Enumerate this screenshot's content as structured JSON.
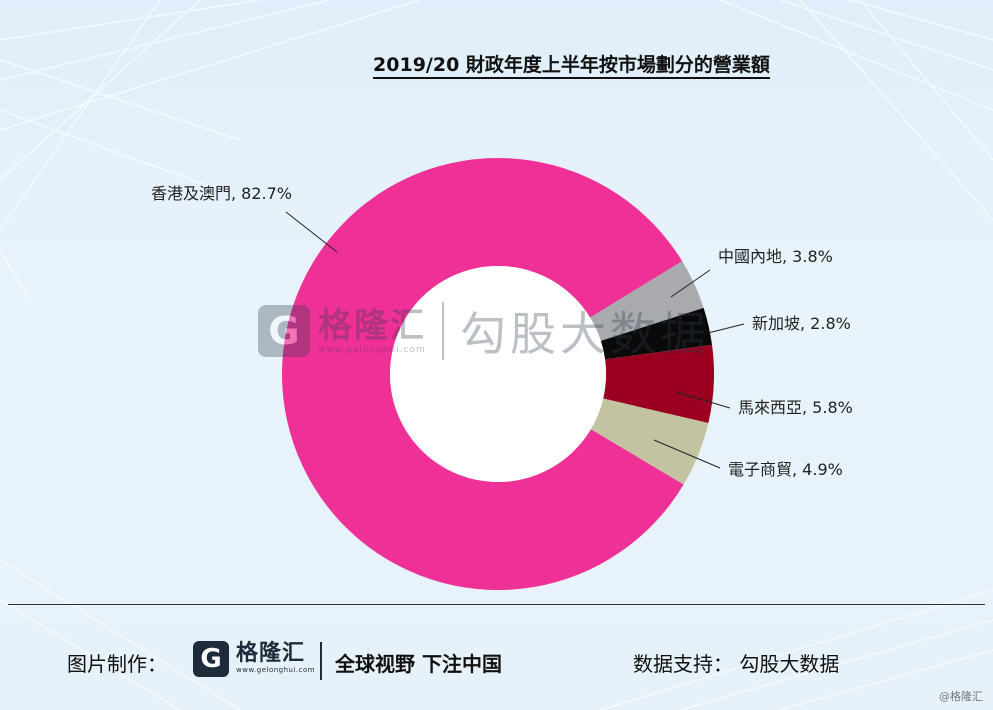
{
  "chart_data": {
    "type": "pie",
    "style": "donut",
    "title": "2019/20 財政年度上半年按市場劃分的營業額",
    "slices": [
      {
        "label": "香港及澳門",
        "value": 82.7,
        "display": "香港及澳門, 82.7%",
        "color": "#ef3096"
      },
      {
        "label": "中國內地",
        "value": 3.8,
        "display": "中國內地, 3.8%",
        "color": "#a8aaad"
      },
      {
        "label": "新加坡",
        "value": 2.8,
        "display": "新加坡, 2.8%",
        "color": "#0a0a0a"
      },
      {
        "label": "馬來西亞",
        "value": 5.8,
        "display": "馬來西亞, 5.8%",
        "color": "#9b0020"
      },
      {
        "label": "電子商貿",
        "value": 4.9,
        "display": "電子商貿, 4.9%",
        "color": "#c3c3a2"
      }
    ]
  },
  "watermark": {
    "logo_glyph": "G",
    "brand_cn": "格隆汇",
    "brand_en": "www.gelonghui.com",
    "platform": "勾股大数据"
  },
  "footer": {
    "made_label": "图片制作：",
    "logo_glyph": "G",
    "brand_cn": "格隆汇",
    "brand_en": "www.gelonghui.com",
    "slogan": "全球视野 下注中国",
    "support": "数据支持： 勾股大数据"
  },
  "corner_mark": "@格隆汇"
}
